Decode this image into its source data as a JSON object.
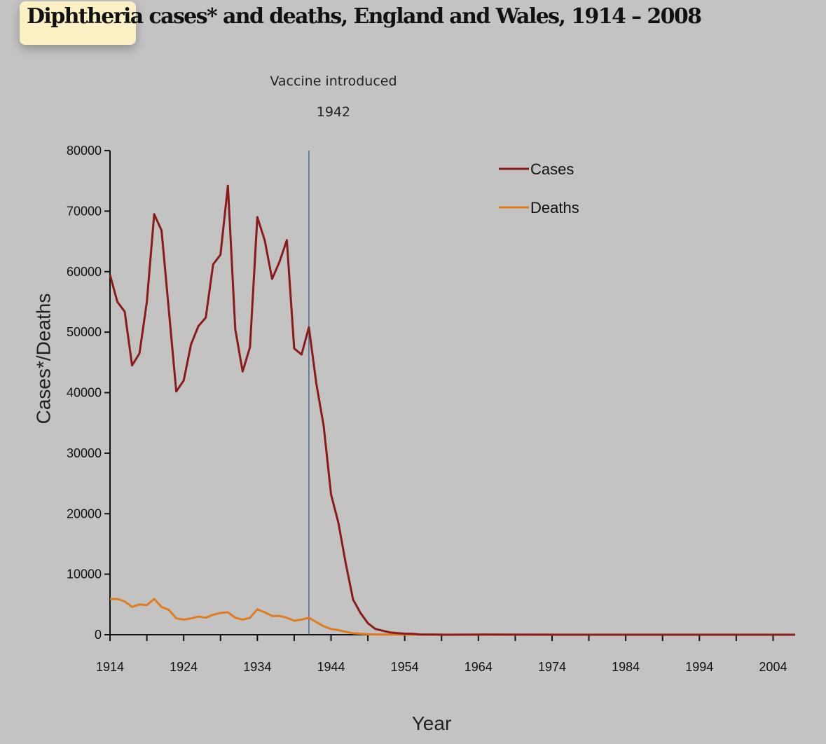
{
  "chart_data": {
    "type": "line",
    "title_highlight": "Diphtheria",
    "title_rest": " cases* and deaths, England and Wales, 1914 – 2008",
    "xlabel": "Year",
    "ylabel": "Cases*/Deaths",
    "xlim": [
      1914,
      2007
    ],
    "ylim": [
      0,
      80000
    ],
    "x_ticks": [
      1914,
      1924,
      1934,
      1944,
      1954,
      1964,
      1974,
      1984,
      1994,
      2004
    ],
    "y_ticks": [
      0,
      10000,
      20000,
      30000,
      40000,
      50000,
      60000,
      70000,
      80000
    ],
    "grid": false,
    "legend_position": "top-right",
    "annotation": {
      "line1": "Vaccine introduced",
      "line2": "1942",
      "x": 1941
    },
    "colors": {
      "cases": "#8b1a1a",
      "deaths": "#e07b1f",
      "vaccine_line": "#3e5a8a",
      "highlight": "#fbf0c4"
    },
    "series": [
      {
        "name": "Cases",
        "points": [
          [
            1914,
            59500
          ],
          [
            1915,
            55000
          ],
          [
            1916,
            53400
          ],
          [
            1917,
            44500
          ],
          [
            1918,
            46500
          ],
          [
            1919,
            55000
          ],
          [
            1920,
            69500
          ],
          [
            1921,
            66800
          ],
          [
            1922,
            53500
          ],
          [
            1923,
            40200
          ],
          [
            1924,
            42000
          ],
          [
            1925,
            48000
          ],
          [
            1926,
            51000
          ],
          [
            1927,
            52400
          ],
          [
            1928,
            61200
          ],
          [
            1929,
            62800
          ],
          [
            1930,
            74200
          ],
          [
            1931,
            50500
          ],
          [
            1932,
            43500
          ],
          [
            1933,
            47500
          ],
          [
            1934,
            69000
          ],
          [
            1935,
            65200
          ],
          [
            1936,
            58800
          ],
          [
            1937,
            61600
          ],
          [
            1938,
            65200
          ],
          [
            1939,
            47300
          ],
          [
            1940,
            46300
          ],
          [
            1941,
            50800
          ],
          [
            1942,
            41500
          ],
          [
            1943,
            34500
          ],
          [
            1944,
            23200
          ],
          [
            1945,
            18500
          ],
          [
            1946,
            11800
          ],
          [
            1947,
            5800
          ],
          [
            1948,
            3600
          ],
          [
            1949,
            1900
          ],
          [
            1950,
            960
          ],
          [
            1951,
            660
          ],
          [
            1952,
            380
          ],
          [
            1953,
            270
          ],
          [
            1954,
            170
          ],
          [
            1955,
            160
          ],
          [
            1956,
            50
          ],
          [
            1957,
            35
          ],
          [
            1958,
            20
          ],
          [
            1960,
            5
          ],
          [
            1965,
            25
          ],
          [
            1970,
            15
          ],
          [
            1975,
            5
          ],
          [
            1980,
            3
          ],
          [
            1985,
            2
          ],
          [
            1990,
            2
          ],
          [
            1995,
            5
          ],
          [
            2000,
            3
          ],
          [
            2007,
            5
          ]
        ]
      },
      {
        "name": "Deaths",
        "points": [
          [
            1914,
            5900
          ],
          [
            1915,
            5900
          ],
          [
            1916,
            5500
          ],
          [
            1917,
            4600
          ],
          [
            1918,
            5000
          ],
          [
            1919,
            4900
          ],
          [
            1920,
            5900
          ],
          [
            1921,
            4600
          ],
          [
            1922,
            4100
          ],
          [
            1923,
            2700
          ],
          [
            1924,
            2500
          ],
          [
            1925,
            2700
          ],
          [
            1926,
            3000
          ],
          [
            1927,
            2800
          ],
          [
            1928,
            3300
          ],
          [
            1929,
            3600
          ],
          [
            1930,
            3700
          ],
          [
            1931,
            2800
          ],
          [
            1932,
            2500
          ],
          [
            1933,
            2800
          ],
          [
            1934,
            4200
          ],
          [
            1935,
            3700
          ],
          [
            1936,
            3100
          ],
          [
            1937,
            3100
          ],
          [
            1938,
            2800
          ],
          [
            1939,
            2300
          ],
          [
            1940,
            2500
          ],
          [
            1941,
            2800
          ],
          [
            1942,
            2100
          ],
          [
            1943,
            1400
          ],
          [
            1944,
            950
          ],
          [
            1945,
            750
          ],
          [
            1946,
            470
          ],
          [
            1947,
            240
          ],
          [
            1948,
            160
          ],
          [
            1949,
            80
          ],
          [
            1950,
            50
          ],
          [
            1951,
            30
          ],
          [
            1952,
            25
          ],
          [
            1953,
            20
          ],
          [
            1955,
            10
          ],
          [
            1960,
            5
          ],
          [
            1970,
            1
          ],
          [
            1980,
            0
          ],
          [
            1990,
            1
          ],
          [
            2000,
            0
          ],
          [
            2007,
            1
          ]
        ]
      }
    ]
  }
}
